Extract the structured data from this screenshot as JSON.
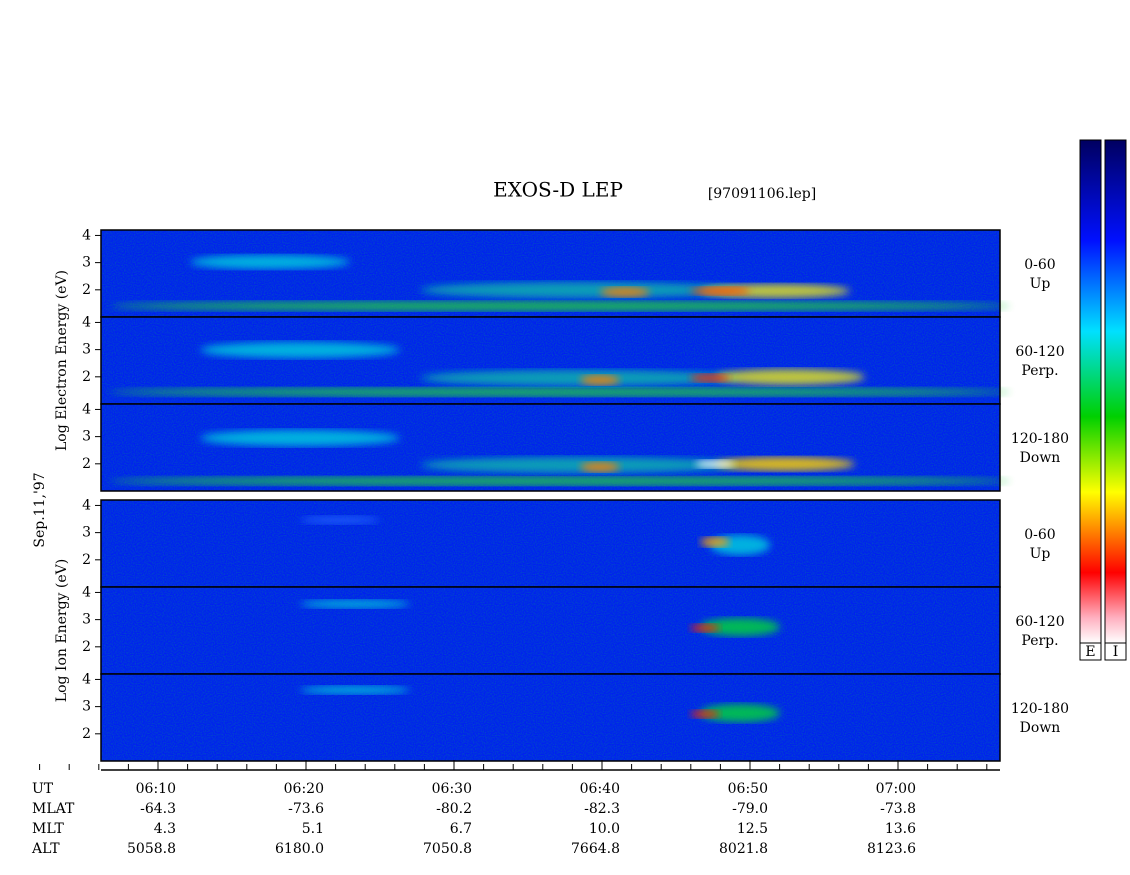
{
  "title": "EXOS-D LEP",
  "file": "[97091106.lep]",
  "date_label": "Sep.11,'97",
  "ylim": [
    1,
    4.2
  ],
  "yticks": [
    2,
    3,
    4
  ],
  "groups": [
    {
      "ylabel": "Log   Electron   Energy (eV)",
      "panels": [
        {
          "angle": "0-60",
          "direction": "Up"
        },
        {
          "angle": "60-120",
          "direction": "Perp."
        },
        {
          "angle": "120-180",
          "direction": "Down"
        }
      ]
    },
    {
      "ylabel": "Log   Ion   Energy (eV)",
      "panels": [
        {
          "angle": "0-60",
          "direction": "Up"
        },
        {
          "angle": "60-120",
          "direction": "Perp."
        },
        {
          "angle": "120-180",
          "direction": "Down"
        }
      ]
    }
  ],
  "ephemeris": [
    {
      "label": "UT",
      "values": [
        "06:10",
        "06:20",
        "06:30",
        "06:40",
        "06:50",
        "07:00"
      ]
    },
    {
      "label": "MLAT",
      "values": [
        "-64.3",
        "-73.6",
        "-80.2",
        "-82.3",
        "-79.0",
        "-73.8"
      ]
    },
    {
      "label": "MLT",
      "values": [
        "4.3",
        "5.1",
        "6.7",
        "10.0",
        "12.5",
        "13.6"
      ]
    },
    {
      "label": "ALT",
      "values": [
        "5058.8",
        "6180.0",
        "7050.8",
        "7664.8",
        "8021.8",
        "8123.6"
      ]
    }
  ],
  "colorbars": [
    "E",
    "I"
  ]
}
